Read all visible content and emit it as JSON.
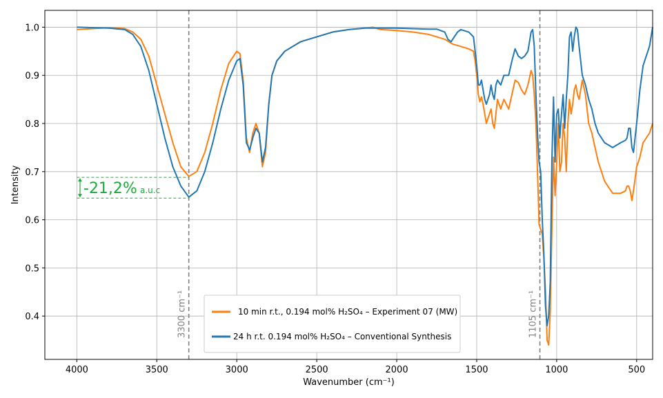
{
  "chart_data": {
    "type": "line",
    "title": "",
    "xlabel": "Wavenumber (cm⁻¹)",
    "ylabel": "Intensity",
    "xlim": [
      4200,
      400
    ],
    "ylim": [
      0.31,
      1.035
    ],
    "x_reversed": true,
    "grid": true,
    "legend_placement": "lower-center",
    "xticks": [
      4000,
      3500,
      3000,
      2500,
      2000,
      1500,
      1000,
      500
    ],
    "yticks": [
      0.4,
      0.5,
      0.6,
      0.7,
      0.8,
      0.9,
      1.0
    ],
    "xtick_labels": [
      "4000",
      "3500",
      "3000",
      "2500",
      "2000",
      "1500",
      "1000",
      "500"
    ],
    "ytick_labels": [
      "0.4",
      "0.5",
      "0.6",
      "0.7",
      "0.8",
      "0.9",
      "1.0"
    ],
    "vlines": [
      {
        "x": 3300,
        "label": "3300 cm⁻¹",
        "color": "#808080"
      },
      {
        "x": 1105,
        "label": "1105 cm⁻¹",
        "color": "#808080"
      }
    ],
    "annotation": {
      "text_main": "-21,2%",
      "text_small": "a.u.c",
      "x_start": 4000,
      "x_end": 3300,
      "y_top": 0.688,
      "y_bottom": 0.645,
      "color": "#1aaa3a"
    },
    "series": [
      {
        "name": "10 min r.t., 0.194 mol% H₂SO₄ – Experiment 07 (MW)",
        "color": "#ff7f0e",
        "x": [
          4000,
          3900,
          3800,
          3700,
          3650,
          3600,
          3550,
          3500,
          3450,
          3400,
          3350,
          3300,
          3250,
          3200,
          3150,
          3100,
          3050,
          3000,
          2980,
          2960,
          2940,
          2920,
          2900,
          2880,
          2860,
          2840,
          2820,
          2800,
          2780,
          2750,
          2700,
          2600,
          2500,
          2400,
          2300,
          2200,
          2150,
          2100,
          2000,
          1900,
          1800,
          1700,
          1650,
          1600,
          1550,
          1520,
          1510,
          1500,
          1490,
          1480,
          1470,
          1460,
          1450,
          1440,
          1420,
          1410,
          1400,
          1390,
          1380,
          1370,
          1350,
          1330,
          1300,
          1280,
          1260,
          1240,
          1220,
          1200,
          1180,
          1160,
          1150,
          1140,
          1130,
          1120,
          1110,
          1100,
          1090,
          1080,
          1070,
          1060,
          1050,
          1040,
          1030,
          1020,
          1010,
          1000,
          990,
          980,
          970,
          960,
          950,
          940,
          930,
          920,
          910,
          900,
          890,
          880,
          870,
          860,
          850,
          840,
          820,
          800,
          780,
          760,
          740,
          700,
          650,
          600,
          570,
          560,
          550,
          540,
          530,
          520,
          500,
          480,
          460,
          440,
          420,
          410,
          400
        ],
        "y": [
          0.995,
          0.997,
          0.999,
          0.997,
          0.99,
          0.975,
          0.94,
          0.88,
          0.82,
          0.76,
          0.71,
          0.69,
          0.7,
          0.74,
          0.8,
          0.87,
          0.925,
          0.95,
          0.945,
          0.89,
          0.77,
          0.74,
          0.78,
          0.8,
          0.78,
          0.71,
          0.74,
          0.84,
          0.9,
          0.93,
          0.95,
          0.97,
          0.98,
          0.99,
          0.995,
          0.998,
          1.0,
          0.995,
          0.993,
          0.99,
          0.985,
          0.975,
          0.965,
          0.96,
          0.955,
          0.95,
          0.93,
          0.9,
          0.86,
          0.845,
          0.855,
          0.84,
          0.82,
          0.8,
          0.82,
          0.83,
          0.8,
          0.79,
          0.82,
          0.85,
          0.83,
          0.85,
          0.83,
          0.86,
          0.89,
          0.885,
          0.87,
          0.86,
          0.88,
          0.91,
          0.9,
          0.86,
          0.8,
          0.7,
          0.59,
          0.58,
          0.57,
          0.52,
          0.45,
          0.35,
          0.34,
          0.41,
          0.58,
          0.73,
          0.65,
          0.72,
          0.8,
          0.7,
          0.72,
          0.8,
          0.77,
          0.7,
          0.8,
          0.85,
          0.82,
          0.84,
          0.87,
          0.88,
          0.86,
          0.85,
          0.87,
          0.89,
          0.86,
          0.8,
          0.78,
          0.75,
          0.72,
          0.68,
          0.655,
          0.655,
          0.66,
          0.67,
          0.67,
          0.66,
          0.64,
          0.66,
          0.71,
          0.73,
          0.76,
          0.77,
          0.78,
          0.79,
          0.8
        ]
      },
      {
        "name": "24 h r.t. 0.194 mol% H₂SO₄ – Conventional Synthesis",
        "color": "#1f77b4",
        "x": [
          4000,
          3900,
          3800,
          3700,
          3650,
          3600,
          3550,
          3500,
          3450,
          3400,
          3350,
          3300,
          3250,
          3200,
          3150,
          3100,
          3050,
          3000,
          2980,
          2960,
          2940,
          2920,
          2900,
          2880,
          2860,
          2840,
          2820,
          2800,
          2780,
          2750,
          2700,
          2600,
          2500,
          2400,
          2300,
          2200,
          2150,
          2100,
          2000,
          1900,
          1800,
          1750,
          1700,
          1680,
          1660,
          1640,
          1620,
          1600,
          1550,
          1520,
          1510,
          1500,
          1490,
          1480,
          1470,
          1460,
          1450,
          1440,
          1420,
          1410,
          1400,
          1390,
          1380,
          1370,
          1350,
          1330,
          1300,
          1280,
          1260,
          1240,
          1220,
          1200,
          1180,
          1160,
          1150,
          1140,
          1130,
          1120,
          1110,
          1100,
          1090,
          1080,
          1070,
          1060,
          1050,
          1040,
          1030,
          1020,
          1010,
          1000,
          990,
          980,
          970,
          960,
          950,
          940,
          930,
          920,
          910,
          900,
          890,
          880,
          870,
          860,
          850,
          840,
          820,
          800,
          780,
          760,
          740,
          700,
          650,
          600,
          570,
          560,
          550,
          540,
          530,
          520,
          500,
          480,
          460,
          440,
          420,
          410,
          400
        ],
        "y": [
          1.0,
          0.999,
          0.998,
          0.995,
          0.985,
          0.96,
          0.91,
          0.84,
          0.77,
          0.71,
          0.67,
          0.647,
          0.66,
          0.7,
          0.76,
          0.83,
          0.89,
          0.93,
          0.935,
          0.88,
          0.76,
          0.745,
          0.77,
          0.79,
          0.78,
          0.72,
          0.75,
          0.84,
          0.9,
          0.93,
          0.95,
          0.97,
          0.98,
          0.99,
          0.995,
          0.998,
          0.998,
          0.998,
          0.998,
          0.997,
          0.996,
          0.996,
          0.99,
          0.975,
          0.97,
          0.98,
          0.99,
          0.995,
          0.99,
          0.98,
          0.95,
          0.92,
          0.88,
          0.88,
          0.89,
          0.87,
          0.85,
          0.84,
          0.86,
          0.88,
          0.86,
          0.85,
          0.88,
          0.89,
          0.88,
          0.9,
          0.9,
          0.93,
          0.955,
          0.94,
          0.935,
          0.94,
          0.95,
          0.99,
          0.995,
          0.96,
          0.86,
          0.78,
          0.72,
          0.7,
          0.6,
          0.53,
          0.42,
          0.38,
          0.4,
          0.47,
          0.72,
          0.855,
          0.72,
          0.82,
          0.83,
          0.77,
          0.82,
          0.86,
          0.79,
          0.85,
          0.9,
          0.98,
          0.99,
          0.95,
          0.98,
          1.0,
          0.995,
          0.96,
          0.93,
          0.9,
          0.88,
          0.85,
          0.83,
          0.8,
          0.78,
          0.76,
          0.75,
          0.76,
          0.765,
          0.77,
          0.79,
          0.79,
          0.75,
          0.74,
          0.8,
          0.87,
          0.92,
          0.94,
          0.96,
          0.98,
          1.0
        ]
      }
    ]
  }
}
